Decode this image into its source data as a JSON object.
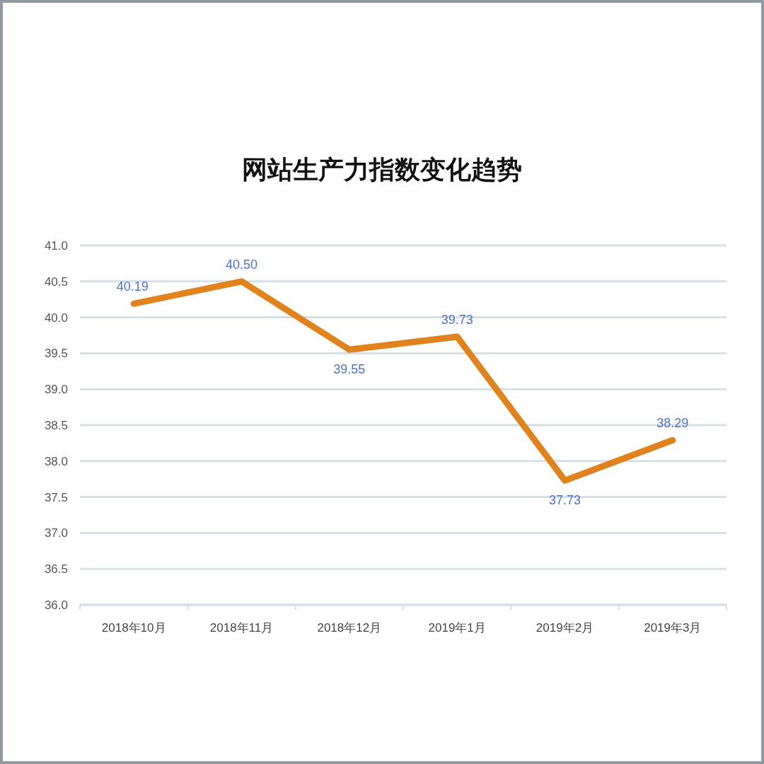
{
  "chart_data": {
    "type": "line",
    "title": "网站生产力指数变化趋势",
    "categories": [
      "2018年10月",
      "2018年11月",
      "2018年12月",
      "2019年1月",
      "2019年2月",
      "2019年3月"
    ],
    "series": [
      {
        "color": "#e0831f",
        "values": [
          40.19,
          40.5,
          39.55,
          39.73,
          37.73,
          38.29
        ],
        "value_labels": [
          "40.19",
          "40.50",
          "39.55",
          "39.73",
          "37.73",
          "38.29"
        ]
      }
    ],
    "ylim": [
      36,
      41
    ],
    "yticks": [
      {
        "value": 36,
        "label": "36.0"
      },
      {
        "value": 36.5,
        "label": "36.5"
      },
      {
        "value": 37,
        "label": "37.0"
      },
      {
        "value": 37.5,
        "label": "37.5"
      },
      {
        "value": 38,
        "label": "38.0"
      },
      {
        "value": 38.5,
        "label": "38.5"
      },
      {
        "value": 39,
        "label": "39.0"
      },
      {
        "value": 39.5,
        "label": "39.5"
      },
      {
        "value": 40,
        "label": "40.0"
      },
      {
        "value": 40.5,
        "label": "40.5"
      },
      {
        "value": 41,
        "label": "41.0"
      }
    ],
    "grid": "y",
    "marker": "none",
    "line_style": "solid"
  }
}
